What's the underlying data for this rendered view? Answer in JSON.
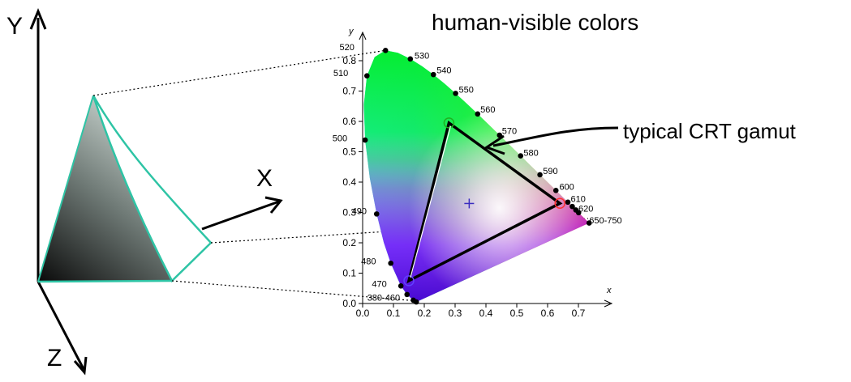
{
  "axes3d": {
    "y_label": "Y",
    "x_label": "X",
    "z_label": "Z"
  },
  "title": "human-visible colors",
  "callout": "typical CRT gamut",
  "chromaticity": {
    "x_axis_letter": "x",
    "y_axis_letter": "y",
    "x_ticks": [
      "0.0",
      "0.1",
      "0.2",
      "0.3",
      "0.4",
      "0.5",
      "0.6",
      "0.7"
    ],
    "y_ticks": [
      "0.0",
      "0.1",
      "0.2",
      "0.3",
      "0.4",
      "0.5",
      "0.6",
      "0.7",
      "0.8"
    ],
    "wavelength_labels": [
      "520",
      "530",
      "540",
      "510",
      "550",
      "560",
      "500",
      "570",
      "580",
      "590",
      "600",
      "610",
      "620",
      "650-750",
      "490",
      "480",
      "470",
      "380-460"
    ]
  },
  "colors": {
    "gamut_outline": "#2ec4a5",
    "crt_triangle": "#000000"
  }
}
